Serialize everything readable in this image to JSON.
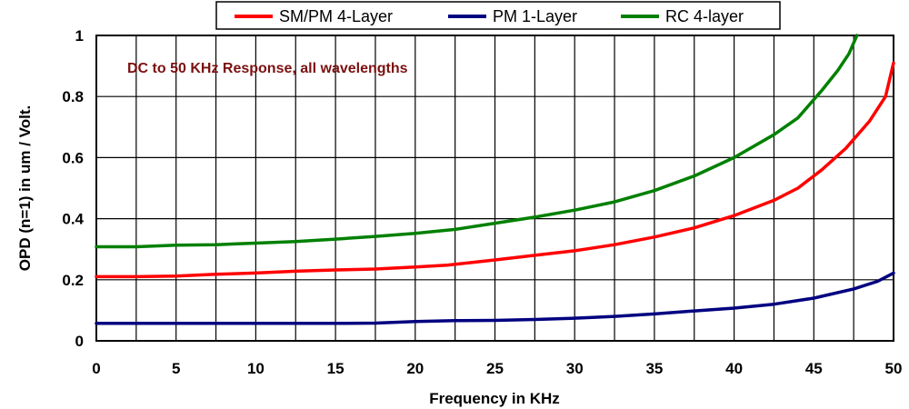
{
  "chart_data": {
    "type": "line",
    "annotation": "DC to 50 KHz Response, all wavelengths",
    "annotation_color": "#7B1010",
    "xlabel": "Frequency in KHz",
    "ylabel": "OPD (n=1) in um / Volt.",
    "xlim": [
      0,
      50
    ],
    "ylim": [
      0,
      1
    ],
    "x_ticks": [
      0,
      5,
      10,
      15,
      20,
      25,
      30,
      35,
      40,
      45,
      50
    ],
    "x_tick_labels": [
      "0",
      "5",
      "10",
      "15",
      "20",
      "25",
      "30",
      "35",
      "40",
      "45",
      "50"
    ],
    "y_ticks": [
      0,
      0.2,
      0.4,
      0.6,
      0.8,
      1
    ],
    "y_tick_labels": [
      "0",
      "0.2",
      "0.4",
      "0.6",
      "0.8",
      "1"
    ],
    "x_grid_step": 2.5,
    "grid": true,
    "legend_position": "top",
    "series": [
      {
        "name": "SM/PM 4-Layer",
        "color": "#FF0000",
        "x": [
          0,
          2.5,
          5,
          7.5,
          10,
          12.5,
          15,
          17.5,
          20,
          22,
          25,
          27.5,
          30,
          32.5,
          35,
          37.5,
          40,
          42.5,
          44,
          45.5,
          47,
          48.5,
          49.5,
          50
        ],
        "y": [
          0.21,
          0.21,
          0.212,
          0.218,
          0.222,
          0.228,
          0.232,
          0.235,
          0.242,
          0.248,
          0.265,
          0.28,
          0.295,
          0.315,
          0.34,
          0.37,
          0.41,
          0.46,
          0.5,
          0.56,
          0.63,
          0.72,
          0.8,
          0.91
        ]
      },
      {
        "name": "PM 1-Layer",
        "color": "#000080",
        "x": [
          0,
          5,
          10,
          15,
          17.5,
          20,
          22.5,
          25,
          27.5,
          30,
          32.5,
          35,
          37.5,
          40,
          42.5,
          45,
          47.5,
          49,
          50
        ],
        "y": [
          0.057,
          0.057,
          0.057,
          0.057,
          0.058,
          0.063,
          0.066,
          0.067,
          0.07,
          0.074,
          0.08,
          0.088,
          0.098,
          0.107,
          0.12,
          0.14,
          0.17,
          0.195,
          0.222
        ]
      },
      {
        "name": "RC 4-layer",
        "color": "#008000",
        "x": [
          0,
          2.5,
          5,
          7.5,
          10,
          12.5,
          15,
          17.5,
          20,
          22.5,
          25,
          27.5,
          30,
          32.5,
          35,
          37.5,
          40,
          42.5,
          44,
          45.5,
          46.5,
          47.2,
          47.7
        ],
        "y": [
          0.308,
          0.308,
          0.313,
          0.315,
          0.32,
          0.325,
          0.333,
          0.342,
          0.352,
          0.365,
          0.385,
          0.405,
          0.428,
          0.455,
          0.492,
          0.54,
          0.6,
          0.675,
          0.73,
          0.82,
          0.885,
          0.94,
          1.0
        ]
      }
    ]
  }
}
